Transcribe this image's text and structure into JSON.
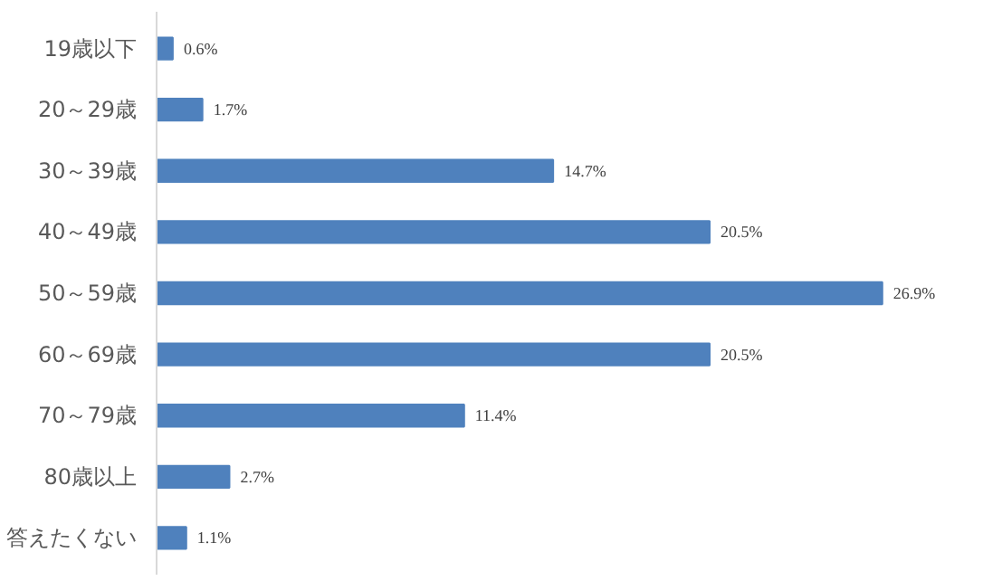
{
  "chart_data": {
    "type": "bar",
    "orientation": "horizontal",
    "categories": [
      "19歳以下",
      "20～29歳",
      "30～39歳",
      "40～49歳",
      "50～59歳",
      "60～69歳",
      "70～79歳",
      "80歳以上",
      "答えたくない"
    ],
    "values": [
      0.6,
      1.7,
      14.7,
      20.5,
      26.9,
      20.5,
      11.4,
      2.7,
      1.1
    ],
    "value_labels": [
      "0.6%",
      "1.7%",
      "14.7%",
      "20.5%",
      "26.9%",
      "20.5%",
      "11.4%",
      "2.7%",
      "1.1%"
    ],
    "color": "#4f81bd",
    "grid": false
  }
}
